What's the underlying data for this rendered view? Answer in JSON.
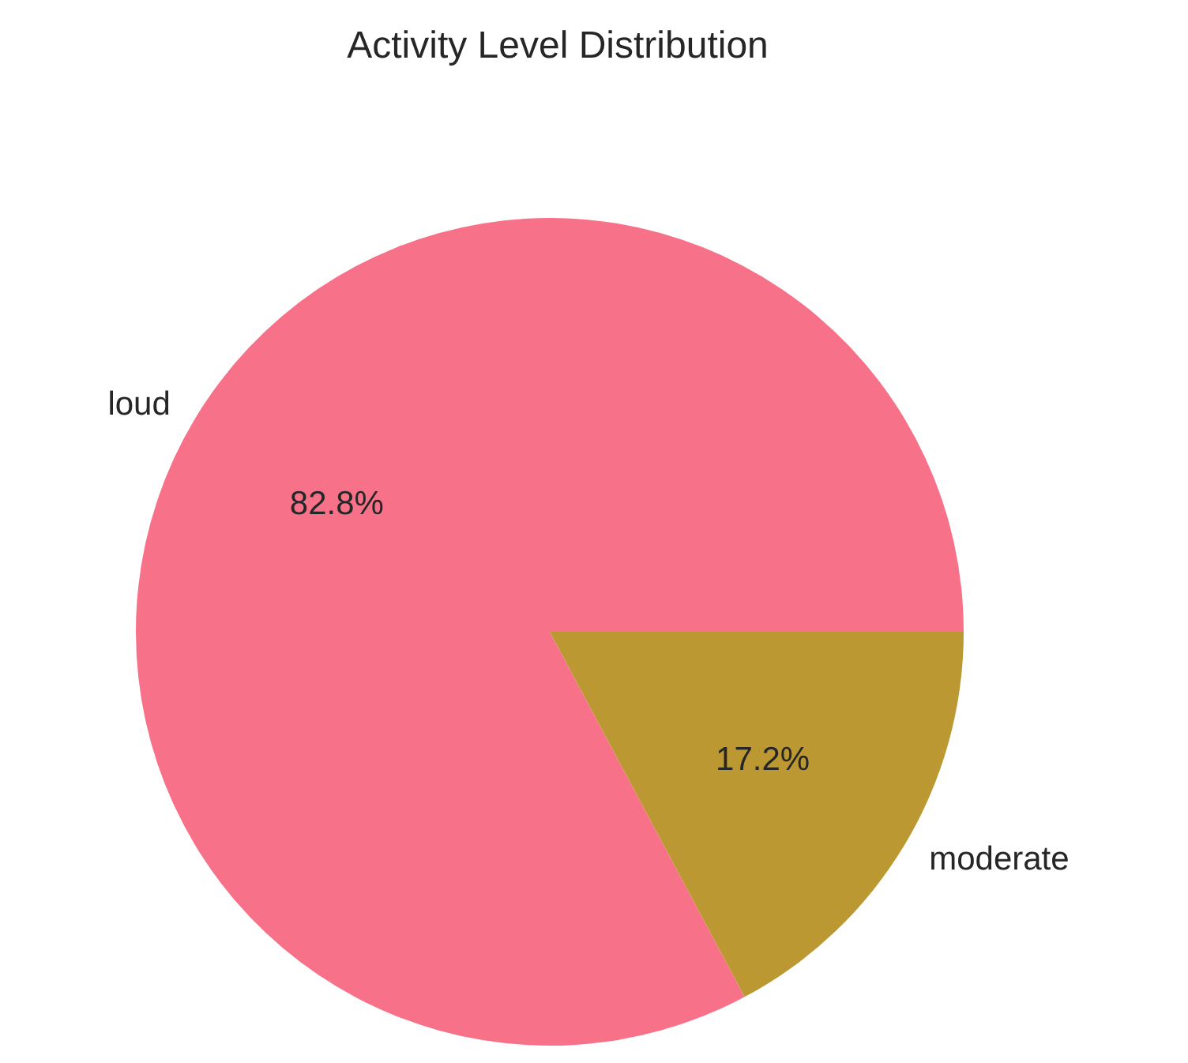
{
  "chart_data": {
    "type": "pie",
    "title": "Activity Level Distribution",
    "categories": [
      "loud",
      "moderate"
    ],
    "values": [
      82.8,
      17.2
    ],
    "value_labels": [
      "82.8%",
      "17.2%"
    ],
    "colors": [
      "#f77189",
      "#bb9832"
    ]
  }
}
